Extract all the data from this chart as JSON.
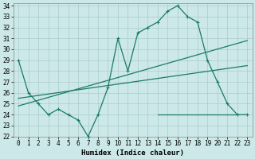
{
  "xlabel": "Humidex (Indice chaleur)",
  "bg_color": "#cce8e8",
  "line_color": "#1a7a6a",
  "grid_color": "#aacccc",
  "xlim": [
    -0.5,
    23.5
  ],
  "ylim": [
    22,
    34.2
  ],
  "xticks": [
    0,
    1,
    2,
    3,
    4,
    5,
    6,
    7,
    8,
    9,
    10,
    11,
    12,
    13,
    14,
    15,
    16,
    17,
    18,
    19,
    20,
    21,
    22,
    23
  ],
  "yticks": [
    22,
    23,
    24,
    25,
    26,
    27,
    28,
    29,
    30,
    31,
    32,
    33,
    34
  ],
  "line1_x": [
    0,
    1,
    2,
    3,
    4,
    5,
    6,
    7,
    8,
    9,
    10,
    11,
    12,
    13,
    14,
    15,
    16,
    17,
    18,
    19,
    20,
    21,
    22,
    23
  ],
  "line1_y": [
    29,
    26,
    25,
    24,
    24.5,
    24,
    23.5,
    22,
    24,
    26.5,
    31,
    28,
    31.5,
    32,
    32.5,
    33.5,
    34,
    33,
    32.5,
    29,
    27,
    25,
    24,
    24
  ],
  "line2_x": [
    0,
    23
  ],
  "line2_y": [
    25.5,
    28.5
  ],
  "line3_x": [
    0,
    23
  ],
  "line3_y": [
    24.8,
    30.8
  ],
  "line4_x": [
    14,
    22
  ],
  "line4_y": [
    24,
    24
  ],
  "fontsize_label": 6.5,
  "fontsize_tick": 5.5
}
